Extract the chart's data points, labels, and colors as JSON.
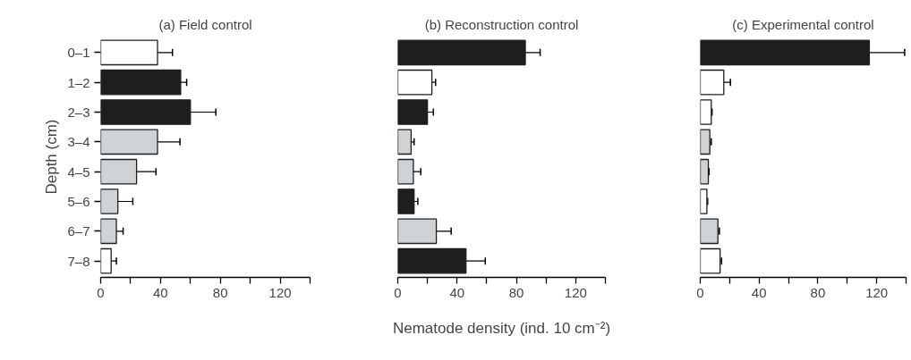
{
  "chart_data": [
    {
      "type": "bar",
      "orientation": "horizontal",
      "title": "(a) Field control",
      "ylabel": "Depth (cm)",
      "categories": [
        "0–1",
        "1–2",
        "2–3",
        "3–4",
        "4–5",
        "5–6",
        "6–7",
        "7–8"
      ],
      "values": [
        38,
        53.5,
        60,
        38,
        24,
        11.5,
        10.5,
        7
      ],
      "errors": [
        10,
        4,
        17,
        15,
        13,
        10,
        4.5,
        3.5
      ],
      "colors": [
        "#ffffff",
        "#1e1e20",
        "#1e1e20",
        "#d0d3d6",
        "#d0d3d6",
        "#d0d3d6",
        "#d0d3d6",
        "#ffffff"
      ],
      "xlim": [
        0,
        140
      ],
      "xticks": [
        0,
        {
          "value": 20,
          "label": null
        },
        40,
        {
          "value": 60,
          "label": null
        },
        80,
        {
          "value": 100,
          "label": null
        },
        120,
        {
          "value": 140,
          "label": null
        }
      ],
      "grid": false
    },
    {
      "type": "bar",
      "orientation": "horizontal",
      "title": "(b) Reconstruction control",
      "xlabel": "Nematode density (ind. 10 cm⁻²)",
      "categories": [
        null,
        null,
        null,
        null,
        null,
        null,
        null,
        null
      ],
      "values": [
        86,
        23,
        20,
        9,
        10.5,
        11,
        26,
        46
      ],
      "errors": [
        10,
        2.5,
        4,
        2,
        5,
        2.5,
        10,
        13
      ],
      "colors": [
        "#1e1e20",
        "#ffffff",
        "#1e1e20",
        "#d0d3d6",
        "#d0d3d6",
        "#1e1e20",
        "#d0d3d6",
        "#1e1e20"
      ],
      "xlim": [
        0,
        140
      ],
      "xticks": [
        0,
        {
          "value": 20,
          "label": null
        },
        40,
        {
          "value": 60,
          "label": null
        },
        80,
        {
          "value": 100,
          "label": null
        },
        120,
        {
          "value": 140,
          "label": null
        }
      ],
      "grid": false,
      "tick_labels": "x"
    },
    {
      "type": "bar",
      "orientation": "horizontal",
      "title": "(c) Experimental control",
      "categories": [
        null,
        null,
        null,
        null,
        null,
        null,
        null,
        null
      ],
      "values": [
        115,
        16,
        7.5,
        6.5,
        5.5,
        4.5,
        12,
        13.5
      ],
      "errors": [
        24,
        4.5,
        0.5,
        1,
        0.5,
        0.5,
        1,
        1
      ],
      "colors": [
        "#1e1e20",
        "#ffffff",
        "#ffffff",
        "#d0d3d6",
        "#d0d3d6",
        "#ffffff",
        "#d0d3d6",
        "#ffffff"
      ],
      "xlim": [
        0,
        140
      ],
      "xticks": [
        0,
        {
          "value": 20,
          "label": null
        },
        40,
        {
          "value": 60,
          "label": null
        },
        80,
        {
          "value": 100,
          "label": null
        },
        120,
        {
          "value": 140,
          "label": null
        }
      ],
      "grid": false,
      "tick_labels": "x"
    }
  ]
}
